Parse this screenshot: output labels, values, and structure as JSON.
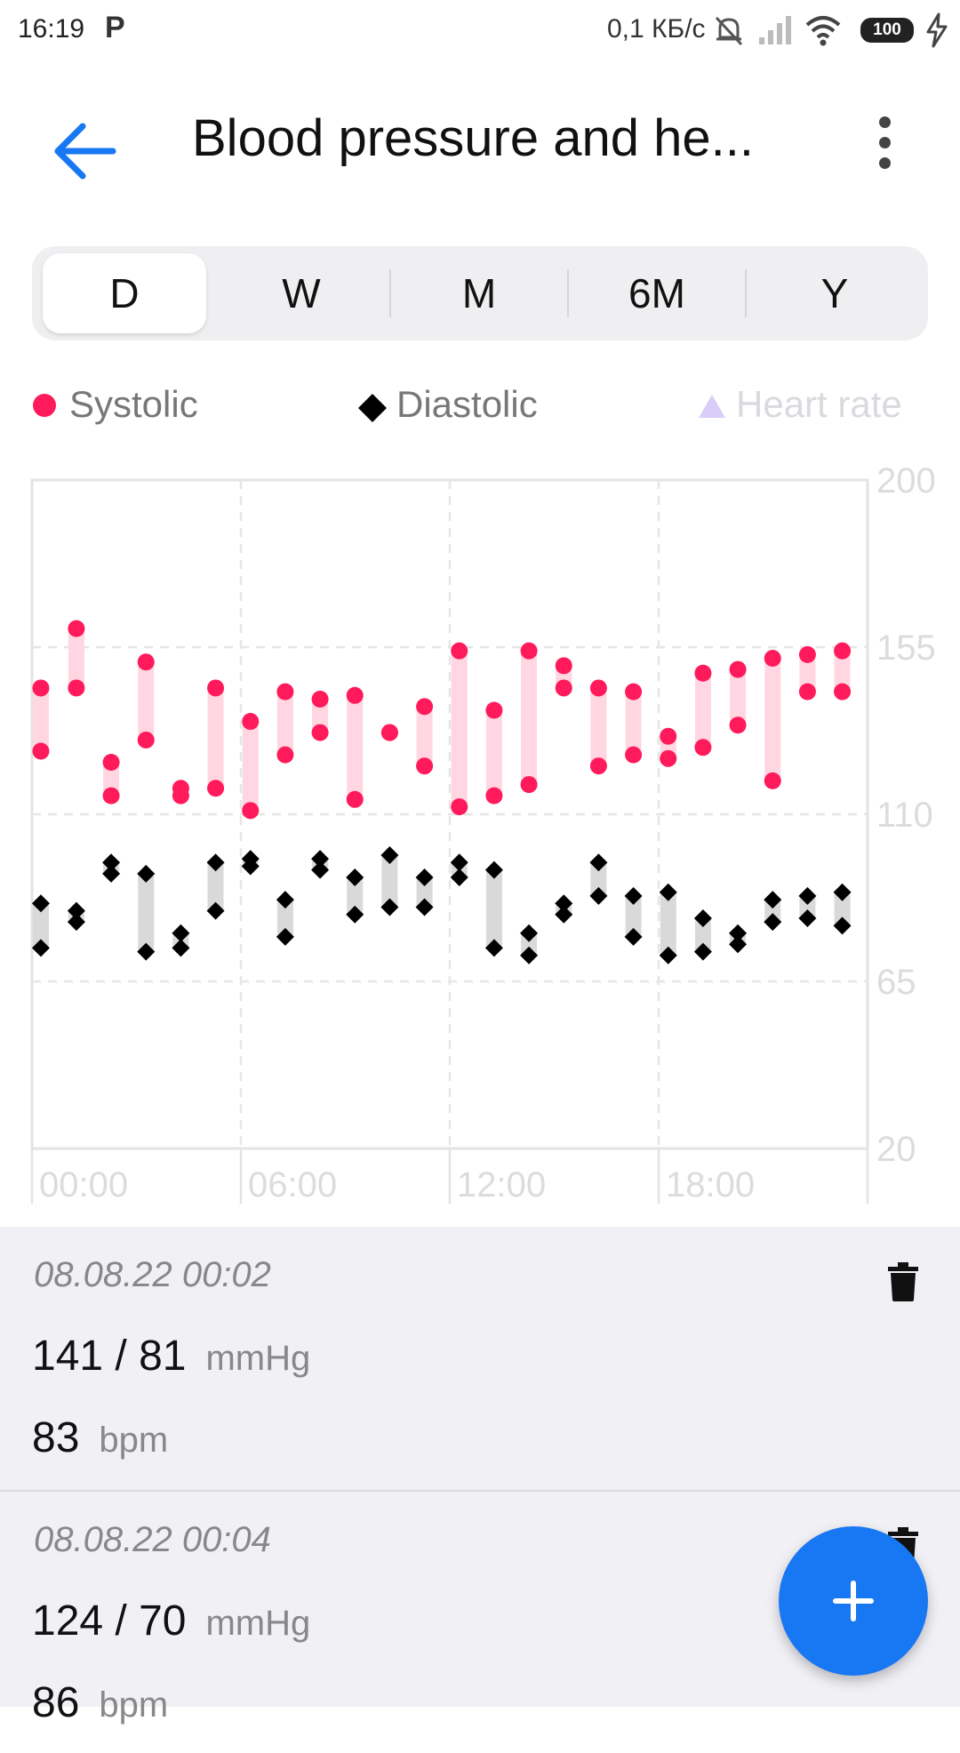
{
  "status_bar": {
    "time": "16:19",
    "carrier_icon": "P",
    "speed": "0,1 КБ/с",
    "battery": "100"
  },
  "header": {
    "title": "Blood pressure and he..."
  },
  "ranges": [
    {
      "label": "D",
      "active": true
    },
    {
      "label": "W",
      "active": false
    },
    {
      "label": "M",
      "active": false
    },
    {
      "label": "6M",
      "active": false
    },
    {
      "label": "Y",
      "active": false
    }
  ],
  "legend": {
    "systolic": "Systolic",
    "diastolic": "Diastolic",
    "heart_rate": "Heart rate"
  },
  "colors": {
    "systolic": "#ff1a5b",
    "systolic_bar": "#ffd6e2",
    "diastolic": "#000000",
    "diastolic_bar": "#d9d9d9",
    "heart_rate": "#d9ccf7",
    "accent": "#1877f2"
  },
  "chart_data": {
    "type": "scatter",
    "x_ticks": [
      "00:00",
      "06:00",
      "12:00",
      "18:00"
    ],
    "y_ticks": [
      200,
      155,
      110,
      65,
      20
    ],
    "ylim": [
      20,
      200
    ],
    "x_range_hours": [
      0,
      24
    ],
    "points": [
      {
        "t": 0.05,
        "sys": [
          144,
          127
        ],
        "dia": [
          86,
          74
        ]
      },
      {
        "t": 1.07,
        "sys": [
          160,
          144
        ],
        "dia": [
          84,
          81
        ]
      },
      {
        "t": 2.07,
        "sys": [
          124,
          115
        ],
        "dia": [
          97,
          94
        ]
      },
      {
        "t": 3.07,
        "sys": [
          151,
          130
        ],
        "dia": [
          94,
          73
        ]
      },
      {
        "t": 4.07,
        "sys": [
          117,
          115
        ],
        "dia": [
          78,
          74
        ]
      },
      {
        "t": 5.07,
        "sys": [
          144,
          117
        ],
        "dia": [
          97,
          84
        ]
      },
      {
        "t": 6.07,
        "sys": [
          135,
          111
        ],
        "dia": [
          98,
          96
        ]
      },
      {
        "t": 7.07,
        "sys": [
          143,
          126
        ],
        "dia": [
          87,
          77
        ]
      },
      {
        "t": 8.07,
        "sys": [
          141,
          132
        ],
        "dia": [
          98,
          95
        ]
      },
      {
        "t": 9.07,
        "sys": [
          142,
          114
        ],
        "dia": [
          93,
          83
        ]
      },
      {
        "t": 10.07,
        "sys": [
          132,
          132
        ],
        "dia": [
          99,
          85
        ]
      },
      {
        "t": 11.07,
        "sys": [
          139,
          123
        ],
        "dia": [
          93,
          85
        ]
      },
      {
        "t": 12.07,
        "sys": [
          154,
          112
        ],
        "dia": [
          97,
          93
        ]
      },
      {
        "t": 13.07,
        "sys": [
          138,
          115
        ],
        "dia": [
          95,
          74
        ]
      },
      {
        "t": 14.07,
        "sys": [
          154,
          118
        ],
        "dia": [
          78,
          72
        ]
      },
      {
        "t": 15.07,
        "sys": [
          150,
          144
        ],
        "dia": [
          86,
          83
        ]
      },
      {
        "t": 16.07,
        "sys": [
          144,
          123
        ],
        "dia": [
          97,
          88
        ]
      },
      {
        "t": 17.07,
        "sys": [
          143,
          126
        ],
        "dia": [
          88,
          77
        ]
      },
      {
        "t": 18.07,
        "sys": [
          131,
          125
        ],
        "dia": [
          89,
          72
        ]
      },
      {
        "t": 19.07,
        "sys": [
          148,
          128
        ],
        "dia": [
          82,
          73
        ]
      },
      {
        "t": 20.07,
        "sys": [
          149,
          134
        ],
        "dia": [
          78,
          75
        ]
      },
      {
        "t": 21.07,
        "sys": [
          152,
          119
        ],
        "dia": [
          87,
          81
        ]
      },
      {
        "t": 22.07,
        "sys": [
          153,
          143
        ],
        "dia": [
          88,
          82
        ]
      },
      {
        "t": 23.07,
        "sys": [
          154,
          143
        ],
        "dia": [
          89,
          80
        ]
      }
    ]
  },
  "entries": [
    {
      "date": "08.08.22 00:02",
      "bp": "141 / 81",
      "bp_unit": "mmHg",
      "hr": "83",
      "hr_unit": "bpm"
    },
    {
      "date": "08.08.22 00:04",
      "bp": "124 / 70",
      "bp_unit": "mmHg",
      "hr": "86",
      "hr_unit": "bpm"
    }
  ],
  "icons": {
    "back": "arrow-left-icon",
    "menu": "more-vert-icon",
    "delete": "trash-icon",
    "add": "plus-icon"
  }
}
